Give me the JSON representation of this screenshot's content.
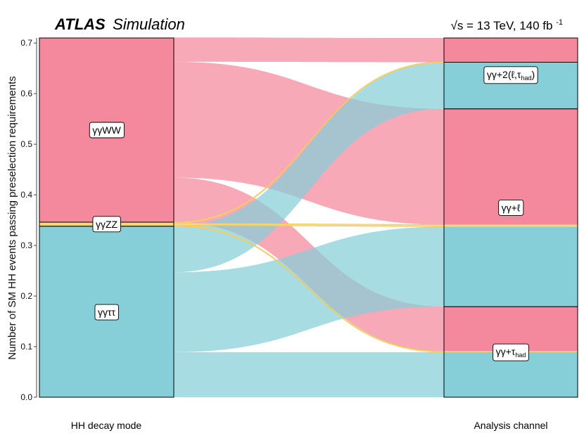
{
  "header": {
    "experiment": "ATLAS",
    "subtitle": "Simulation",
    "energy": "√s = 13 TeV, 140 fb",
    "lumi_sup": "-1"
  },
  "chart_data": {
    "type": "alluvial",
    "ylabel": "Number of SM HH events passing preselection requirements",
    "ylim": [
      0,
      0.71
    ],
    "yticks": [
      "0.0",
      "0.1",
      "0.2",
      "0.3",
      "0.4",
      "0.5",
      "0.6",
      "0.7"
    ],
    "left_axis_label": "HH decay mode",
    "right_axis_label": "Analysis channel",
    "colors": {
      "WW": "#f4889c",
      "ZZ": "#f7d77a",
      "tautau": "#86cfd8"
    },
    "left_nodes": [
      {
        "id": "tautau",
        "label": "γγττ",
        "value": 0.338
      },
      {
        "id": "ZZ",
        "label": "γγZZ",
        "value": 0.008
      },
      {
        "id": "WW",
        "label": "γγWW",
        "value": 0.364
      }
    ],
    "right_nodes": [
      {
        "id": "tauhad",
        "label": "γγ+τ",
        "sub": "had",
        "value": 0.179
      },
      {
        "id": "lep",
        "label": "γγ+ℓ",
        "value": 0.391
      },
      {
        "id": "two",
        "label": "γγ+2(ℓ,τ",
        "sub": "had",
        "close": ")",
        "value": 0.092
      },
      {
        "id": "none",
        "label": "",
        "value": 0.048
      }
    ],
    "flows": [
      {
        "from": "tautau",
        "to": "tauhad",
        "value": 0.089
      },
      {
        "from": "tautau",
        "to": "lep",
        "value": 0.158
      },
      {
        "from": "tautau",
        "to": "two",
        "value": 0.091
      },
      {
        "from": "ZZ",
        "to": "tauhad",
        "value": 0.002
      },
      {
        "from": "ZZ",
        "to": "lep",
        "value": 0.004
      },
      {
        "from": "ZZ",
        "to": "two",
        "value": 0.002
      },
      {
        "from": "WW",
        "to": "tauhad",
        "value": 0.088
      },
      {
        "from": "WW",
        "to": "lep",
        "value": 0.229
      },
      {
        "from": "WW",
        "to": "none",
        "value": 0.048
      }
    ]
  }
}
